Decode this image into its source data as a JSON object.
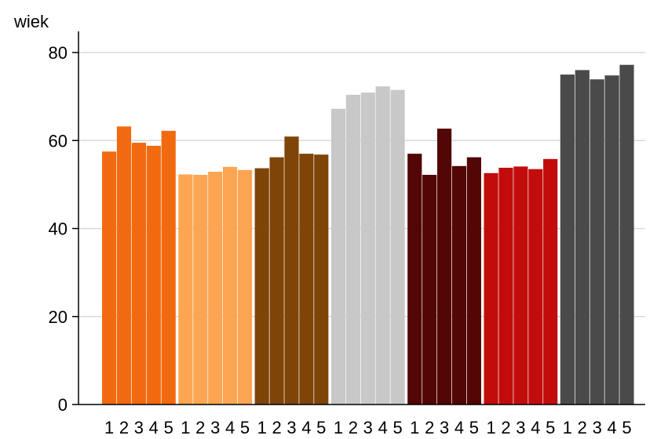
{
  "chart_data": {
    "type": "bar",
    "ylabel": "wiek",
    "xlabel": "",
    "ylim": [
      0,
      85
    ],
    "yticks": [
      0,
      20,
      40,
      60,
      80
    ],
    "grid": "horizontal",
    "categories": [
      "1",
      "2",
      "3",
      "4",
      "5"
    ],
    "groups": [
      {
        "color": "#f26a10",
        "values": [
          57.5,
          63.2,
          59.5,
          58.8,
          62.2
        ]
      },
      {
        "color": "#fca552",
        "values": [
          52.3,
          52.2,
          52.9,
          54.0,
          53.3
        ]
      },
      {
        "color": "#7f4408",
        "values": [
          53.7,
          56.2,
          60.9,
          57.0,
          56.8
        ]
      },
      {
        "color": "#c8c8c8",
        "values": [
          67.2,
          70.4,
          70.9,
          72.3,
          71.5
        ]
      },
      {
        "color": "#520606",
        "values": [
          57.0,
          52.2,
          62.7,
          54.2,
          56.2
        ]
      },
      {
        "color": "#c20c0c",
        "values": [
          52.6,
          53.8,
          54.1,
          53.5,
          55.8
        ]
      },
      {
        "color": "#4a4a4a",
        "values": [
          75.0,
          76.0,
          73.9,
          74.8,
          77.2
        ]
      }
    ]
  }
}
